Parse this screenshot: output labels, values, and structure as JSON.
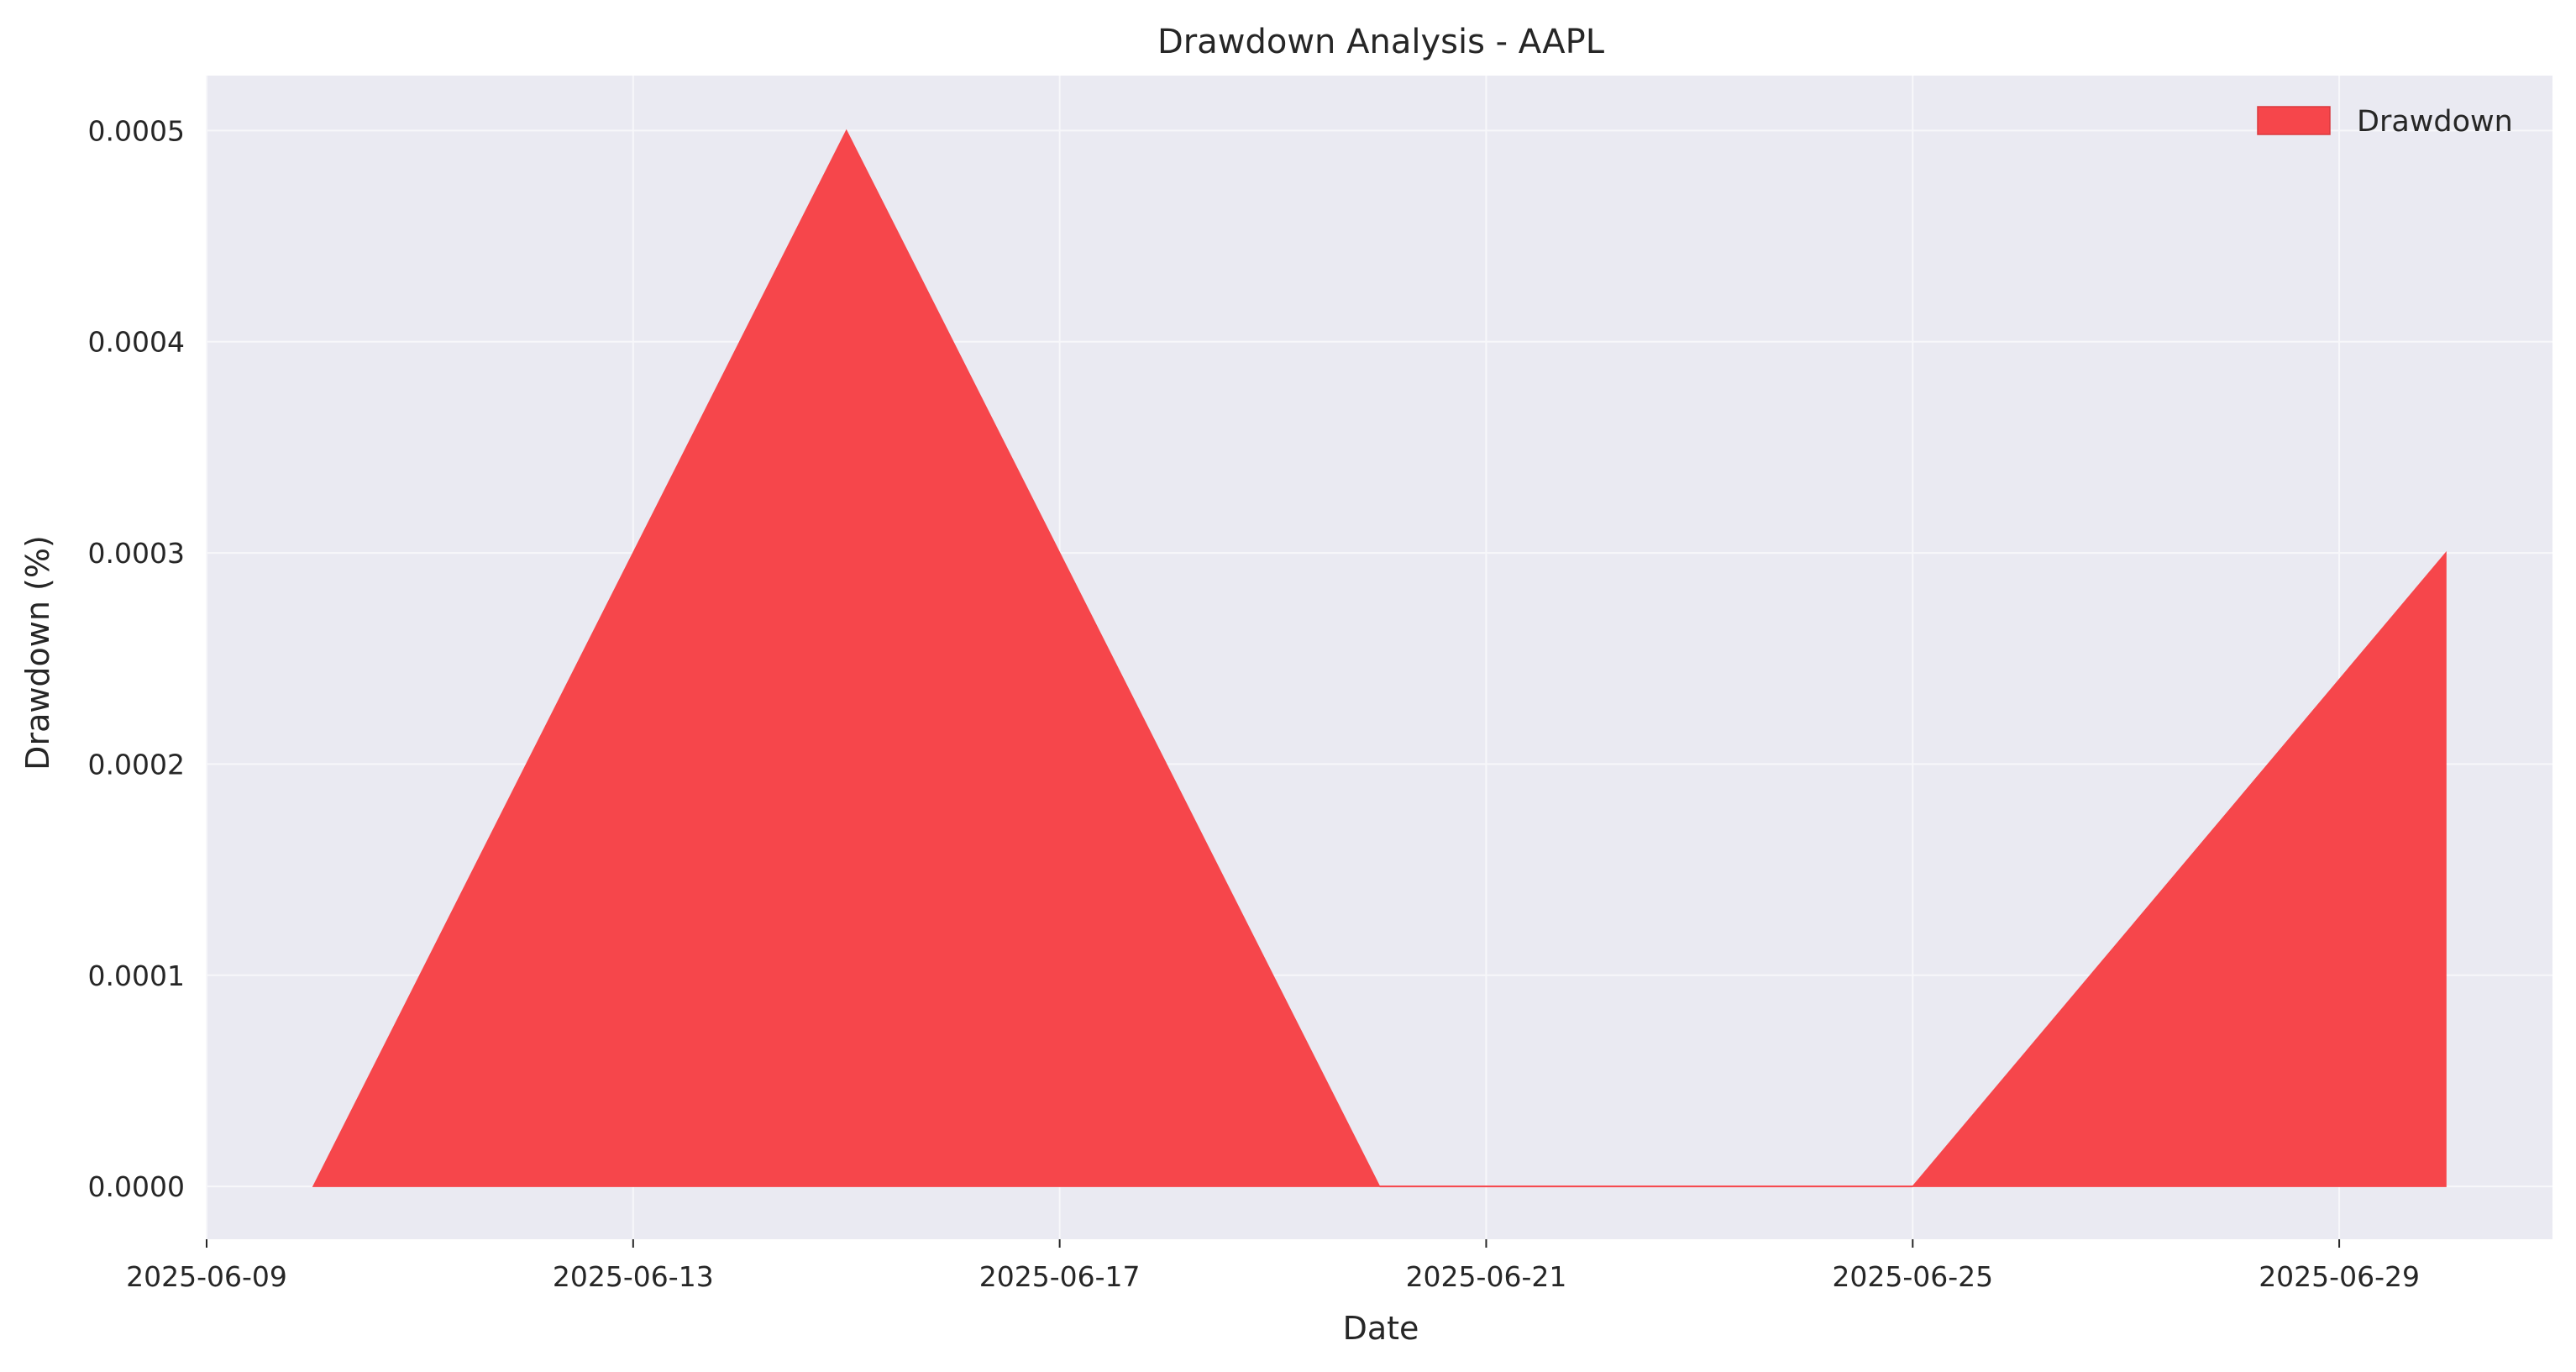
{
  "chart_data": {
    "type": "area",
    "title": "Drawdown Analysis - AAPL",
    "xlabel": "Date",
    "ylabel": "Drawdown (%)",
    "x": [
      "2025-06-10",
      "2025-06-15",
      "2025-06-20",
      "2025-06-25",
      "2025-06-30"
    ],
    "series": [
      {
        "name": "Drawdown",
        "values": [
          0.0,
          0.0005,
          0.0,
          0.0,
          0.0003
        ],
        "color": "#f6464b"
      }
    ],
    "xlim": [
      "2025-06-09",
      "2025-07-01"
    ],
    "ylim": [
      -2.5e-05,
      0.000526
    ],
    "x_ticks": [
      "2025-06-09",
      "2025-06-13",
      "2025-06-17",
      "2025-06-21",
      "2025-06-25",
      "2025-06-29"
    ],
    "y_ticks": [
      0.0,
      0.0001,
      0.0002,
      0.0003,
      0.0004,
      0.0005
    ],
    "y_tick_labels": [
      "0.0000",
      "0.0001",
      "0.0002",
      "0.0003",
      "0.0004",
      "0.0005"
    ],
    "grid": true,
    "legend_position": "top-right",
    "background_color": "#eaeaf2",
    "grid_color": "#f7f7fa"
  }
}
